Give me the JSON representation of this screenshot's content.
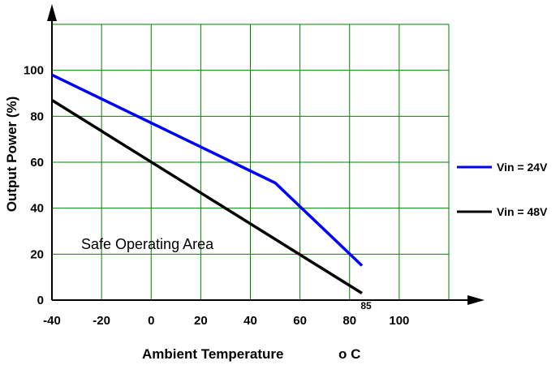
{
  "chart_data": {
    "type": "line",
    "xlabel": "Ambient Temperature",
    "xlabel_unit": "o C",
    "ylabel": "Output Power (%)",
    "xlim": [
      -40,
      120
    ],
    "ylim": [
      0,
      120
    ],
    "x_ticks": [
      "-40",
      "-20",
      "0",
      "20",
      "40",
      "60",
      "80",
      "100"
    ],
    "y_ticks": [
      "0",
      "20",
      "40",
      "60",
      "80",
      "100"
    ],
    "extra_x_tick": "85",
    "grid": true,
    "grid_color": "#008000",
    "legend_position": "right",
    "annotation": "Safe Operating Area",
    "series": [
      {
        "name": "Vin = 24V",
        "color": "#0000ff",
        "points": [
          [
            -40,
            98
          ],
          [
            50,
            51
          ],
          [
            85,
            15
          ]
        ]
      },
      {
        "name": "Vin = 48V",
        "color": "#000000",
        "points": [
          [
            -40,
            87
          ],
          [
            85,
            3
          ]
        ]
      }
    ]
  }
}
